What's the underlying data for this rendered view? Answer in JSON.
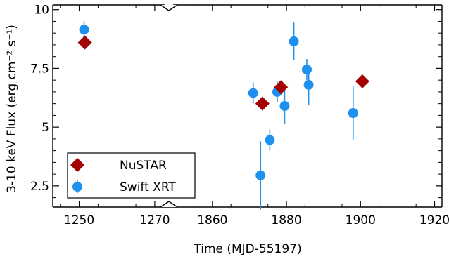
{
  "chart_data": {
    "type": "scatter",
    "title": "",
    "xlabel": "Time (MJD-55197)",
    "ylabel": "3-10 keV Flux (erg cm⁻² s⁻¹)",
    "ylim": [
      1.6,
      10.2
    ],
    "y_ticks": [
      2.5,
      5,
      7.5,
      10
    ],
    "y_tick_labels": [
      "2.5",
      "5",
      "7.5",
      "10"
    ],
    "broken_x_axis": true,
    "x_segments": [
      {
        "xlim": [
          1243,
          1273
        ],
        "ticks": [
          1250,
          1270
        ],
        "tick_labels": [
          "1250",
          "1270"
        ]
      },
      {
        "xlim": [
          1849,
          1922
        ],
        "ticks": [
          1860,
          1880,
          1900,
          1920
        ],
        "tick_labels": [
          "1860",
          "1880",
          "1900",
          "1920"
        ]
      }
    ],
    "series": [
      {
        "name": "NuSTAR",
        "marker": "diamond",
        "color": "#a30000",
        "points": [
          {
            "x": 1251.5,
            "y": 8.6,
            "err": 0.12
          },
          {
            "x": 1873.5,
            "y": 6.0,
            "err": 0.1
          },
          {
            "x": 1878.5,
            "y": 6.7,
            "err": 0.1
          },
          {
            "x": 1900.5,
            "y": 6.95,
            "err": 0.1
          }
        ]
      },
      {
        "name": "Swift XRT",
        "marker": "circle",
        "color": "#1e90ee",
        "points": [
          {
            "x": 1251.3,
            "y": 9.15,
            "err": 0.35
          },
          {
            "x": 1871.0,
            "y": 6.45,
            "err": 0.45
          },
          {
            "x": 1873.0,
            "y": 2.95,
            "err": 1.45
          },
          {
            "x": 1875.5,
            "y": 4.45,
            "err": 0.45
          },
          {
            "x": 1877.5,
            "y": 6.5,
            "err": 0.45
          },
          {
            "x": 1879.5,
            "y": 5.9,
            "err": 0.75
          },
          {
            "x": 1882.0,
            "y": 8.65,
            "err": 0.8
          },
          {
            "x": 1885.5,
            "y": 7.45,
            "err": 0.45
          },
          {
            "x": 1886.0,
            "y": 6.8,
            "err": 0.85
          },
          {
            "x": 1898.0,
            "y": 5.6,
            "err": 1.15
          }
        ]
      }
    ],
    "legend_position": "bottom-left"
  }
}
